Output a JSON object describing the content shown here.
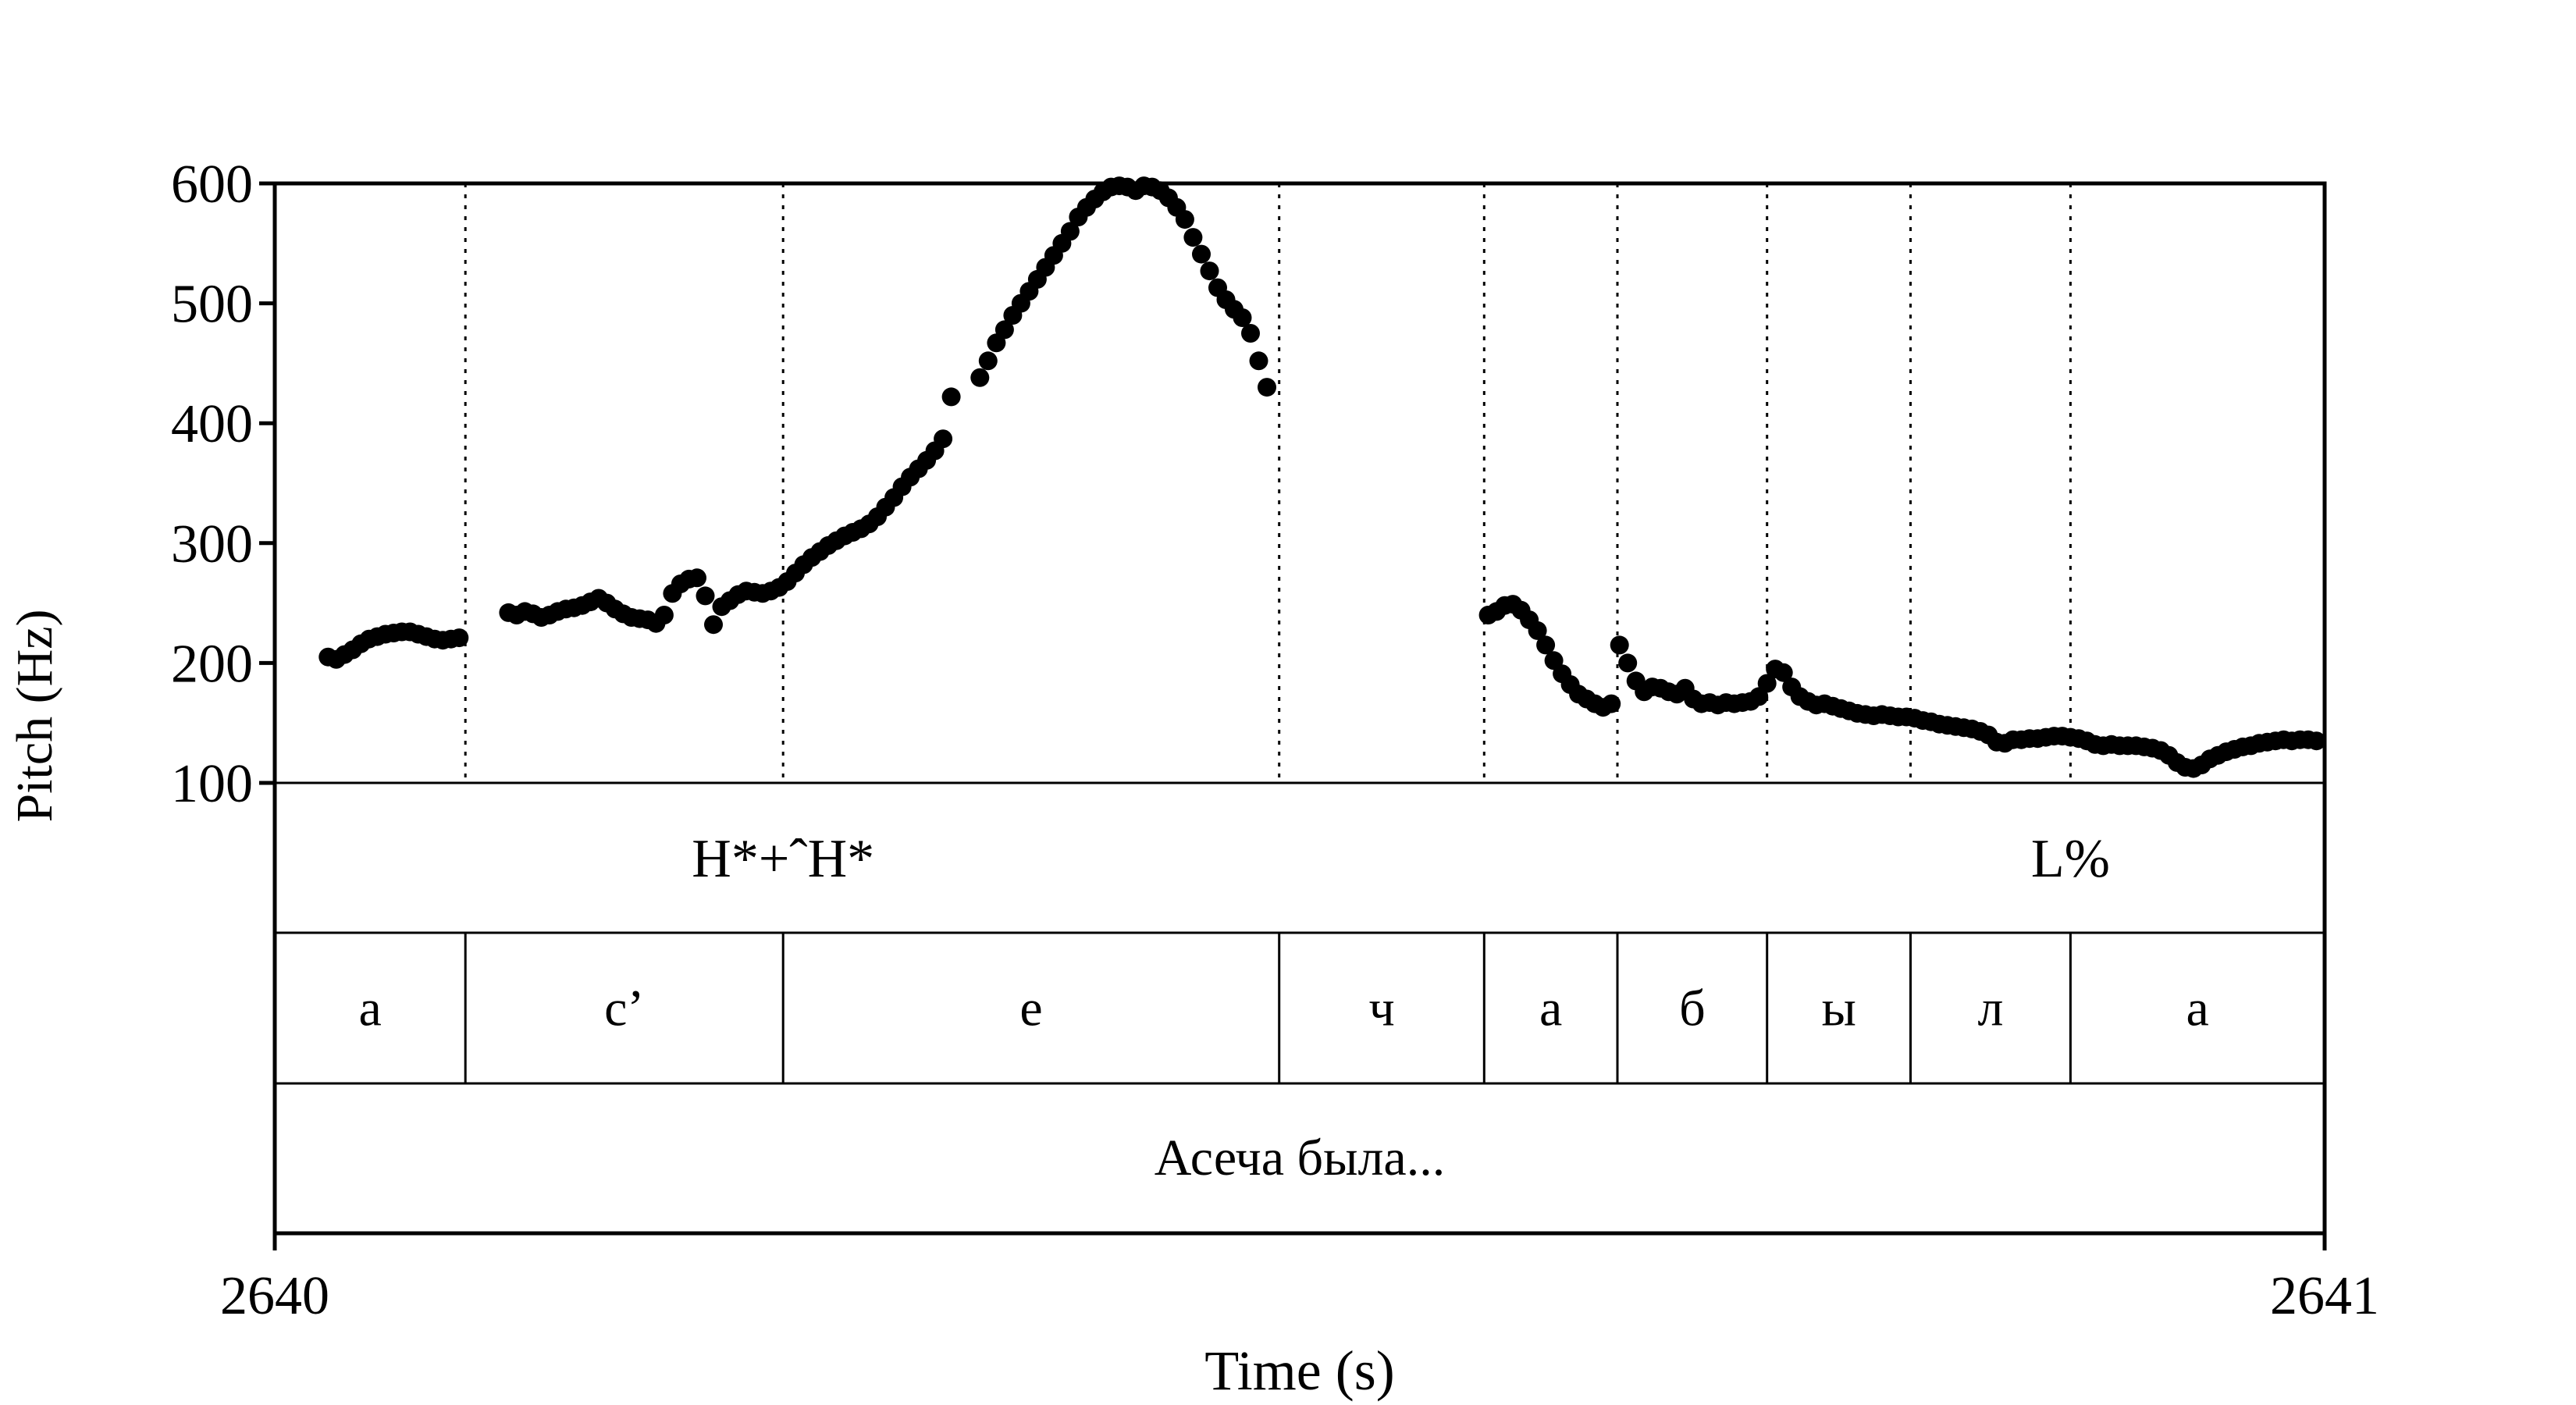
{
  "chart_data": {
    "type": "scatter",
    "title": "",
    "ylabel": "Pitch (Hz)",
    "xlabel": "Time (s)",
    "ylim": [
      100,
      600
    ],
    "xlim": [
      2640,
      2641
    ],
    "y_ticks": [
      "600",
      "500",
      "400",
      "300",
      "200",
      "100"
    ],
    "y_tick_values": [
      600,
      500,
      400,
      300,
      200,
      100
    ],
    "x_tick_labels": [
      "2640",
      "2641"
    ],
    "grid": false,
    "marker_color": "#000000",
    "boundaries": [
      2640.093,
      2640.248,
      2640.49,
      2640.59,
      2640.655,
      2640.728,
      2640.798,
      2640.876
    ],
    "tones": [
      {
        "label": "H*+ˆH*",
        "t": 2640.248
      },
      {
        "label": "L%",
        "t": 2640.876
      }
    ],
    "segments": [
      {
        "label": "а",
        "start": 2640.0,
        "end": 2640.093
      },
      {
        "label": "с’",
        "start": 2640.093,
        "end": 2640.248
      },
      {
        "label": "е",
        "start": 2640.248,
        "end": 2640.49
      },
      {
        "label": "ч",
        "start": 2640.49,
        "end": 2640.59
      },
      {
        "label": "а",
        "start": 2640.59,
        "end": 2640.655
      },
      {
        "label": "б",
        "start": 2640.655,
        "end": 2640.728
      },
      {
        "label": "ы",
        "start": 2640.728,
        "end": 2640.798
      },
      {
        "label": "л",
        "start": 2640.798,
        "end": 2640.876
      },
      {
        "label": "а",
        "start": 2640.876,
        "end": 2641.0
      }
    ],
    "words_tier_label": "Асеча была...",
    "pitch_segments": [
      [
        [
          2640.026,
          205
        ],
        [
          2640.03,
          203
        ],
        [
          2640.034,
          207
        ],
        [
          2640.038,
          211
        ],
        [
          2640.042,
          216
        ],
        [
          2640.046,
          220
        ],
        [
          2640.05,
          222
        ],
        [
          2640.054,
          224
        ],
        [
          2640.058,
          225
        ],
        [
          2640.062,
          226
        ],
        [
          2640.066,
          226
        ],
        [
          2640.07,
          224
        ],
        [
          2640.074,
          222
        ],
        [
          2640.078,
          220
        ],
        [
          2640.082,
          219
        ],
        [
          2640.086,
          220
        ],
        [
          2640.09,
          221
        ]
      ],
      [
        [
          2640.114,
          242
        ],
        [
          2640.118,
          240
        ],
        [
          2640.122,
          243
        ],
        [
          2640.126,
          241
        ],
        [
          2640.13,
          238
        ],
        [
          2640.134,
          240
        ],
        [
          2640.138,
          243
        ],
        [
          2640.142,
          245
        ],
        [
          2640.146,
          246
        ],
        [
          2640.15,
          248
        ],
        [
          2640.154,
          251
        ],
        [
          2640.158,
          254
        ],
        [
          2640.162,
          250
        ],
        [
          2640.166,
          245
        ],
        [
          2640.17,
          241
        ],
        [
          2640.174,
          238
        ],
        [
          2640.178,
          237
        ],
        [
          2640.182,
          236
        ],
        [
          2640.186,
          233
        ],
        [
          2640.19,
          240
        ],
        [
          2640.194,
          258
        ],
        [
          2640.198,
          266
        ],
        [
          2640.202,
          270
        ],
        [
          2640.206,
          271
        ],
        [
          2640.21,
          256
        ],
        [
          2640.214,
          232
        ],
        [
          2640.218,
          247
        ],
        [
          2640.222,
          252
        ],
        [
          2640.226,
          257
        ],
        [
          2640.23,
          260
        ],
        [
          2640.234,
          259
        ],
        [
          2640.238,
          258
        ],
        [
          2640.242,
          260
        ],
        [
          2640.246,
          263
        ],
        [
          2640.25,
          268
        ],
        [
          2640.254,
          275
        ],
        [
          2640.258,
          282
        ],
        [
          2640.262,
          288
        ],
        [
          2640.266,
          293
        ],
        [
          2640.27,
          298
        ],
        [
          2640.274,
          302
        ],
        [
          2640.278,
          306
        ],
        [
          2640.282,
          309
        ],
        [
          2640.286,
          312
        ],
        [
          2640.29,
          316
        ],
        [
          2640.294,
          322
        ],
        [
          2640.298,
          330
        ],
        [
          2640.302,
          338
        ],
        [
          2640.306,
          347
        ],
        [
          2640.31,
          355
        ],
        [
          2640.314,
          362
        ],
        [
          2640.318,
          369
        ],
        [
          2640.322,
          377
        ],
        [
          2640.326,
          387
        ],
        [
          2640.33,
          422
        ]
      ],
      [
        [
          2640.344,
          438
        ],
        [
          2640.348,
          452
        ],
        [
          2640.352,
          467
        ],
        [
          2640.356,
          478
        ],
        [
          2640.36,
          490
        ],
        [
          2640.364,
          500
        ],
        [
          2640.368,
          510
        ],
        [
          2640.372,
          520
        ],
        [
          2640.376,
          530
        ],
        [
          2640.38,
          540
        ],
        [
          2640.384,
          550
        ],
        [
          2640.388,
          560
        ],
        [
          2640.392,
          572
        ],
        [
          2640.396,
          580
        ],
        [
          2640.4,
          587
        ],
        [
          2640.404,
          593
        ],
        [
          2640.408,
          597
        ],
        [
          2640.412,
          598
        ],
        [
          2640.416,
          597
        ],
        [
          2640.42,
          594
        ],
        [
          2640.424,
          598
        ],
        [
          2640.428,
          597
        ],
        [
          2640.432,
          594
        ],
        [
          2640.436,
          588
        ],
        [
          2640.44,
          580
        ],
        [
          2640.444,
          570
        ],
        [
          2640.448,
          555
        ],
        [
          2640.452,
          541
        ],
        [
          2640.456,
          527
        ],
        [
          2640.46,
          513
        ],
        [
          2640.464,
          503
        ],
        [
          2640.468,
          495
        ],
        [
          2640.472,
          488
        ],
        [
          2640.476,
          475
        ],
        [
          2640.48,
          452
        ],
        [
          2640.484,
          430
        ]
      ],
      [
        [
          2640.592,
          240
        ],
        [
          2640.596,
          243
        ],
        [
          2640.6,
          248
        ],
        [
          2640.604,
          249
        ],
        [
          2640.608,
          244
        ],
        [
          2640.612,
          236
        ],
        [
          2640.616,
          227
        ],
        [
          2640.62,
          215
        ],
        [
          2640.624,
          202
        ],
        [
          2640.628,
          191
        ],
        [
          2640.632,
          182
        ],
        [
          2640.636,
          174
        ],
        [
          2640.64,
          170
        ],
        [
          2640.644,
          166
        ],
        [
          2640.648,
          163
        ],
        [
          2640.652,
          166
        ]
      ],
      [
        [
          2640.656,
          215
        ],
        [
          2640.66,
          200
        ],
        [
          2640.664,
          185
        ],
        [
          2640.668,
          176
        ],
        [
          2640.672,
          180
        ],
        [
          2640.676,
          179
        ],
        [
          2640.68,
          176
        ],
        [
          2640.684,
          174
        ],
        [
          2640.688,
          179
        ],
        [
          2640.692,
          170
        ],
        [
          2640.696,
          166
        ],
        [
          2640.7,
          167
        ],
        [
          2640.704,
          165
        ],
        [
          2640.708,
          167
        ],
        [
          2640.712,
          166
        ],
        [
          2640.716,
          167
        ],
        [
          2640.72,
          168
        ],
        [
          2640.724,
          172
        ],
        [
          2640.728,
          183
        ],
        [
          2640.732,
          195
        ],
        [
          2640.736,
          192
        ],
        [
          2640.74,
          180
        ],
        [
          2640.744,
          172
        ],
        [
          2640.748,
          168
        ],
        [
          2640.752,
          165
        ],
        [
          2640.756,
          166
        ],
        [
          2640.76,
          164
        ],
        [
          2640.764,
          162
        ],
        [
          2640.768,
          160
        ],
        [
          2640.772,
          158
        ],
        [
          2640.776,
          157
        ],
        [
          2640.78,
          156
        ],
        [
          2640.784,
          157
        ],
        [
          2640.788,
          156
        ],
        [
          2640.792,
          155
        ],
        [
          2640.796,
          155
        ],
        [
          2640.8,
          154
        ],
        [
          2640.804,
          152
        ],
        [
          2640.808,
          151
        ],
        [
          2640.812,
          149
        ],
        [
          2640.816,
          148
        ],
        [
          2640.82,
          147
        ],
        [
          2640.824,
          146
        ],
        [
          2640.828,
          145
        ],
        [
          2640.832,
          143
        ],
        [
          2640.836,
          140
        ],
        [
          2640.84,
          134
        ],
        [
          2640.844,
          133
        ],
        [
          2640.848,
          136
        ],
        [
          2640.852,
          136
        ],
        [
          2640.856,
          137
        ],
        [
          2640.86,
          137
        ],
        [
          2640.864,
          138
        ],
        [
          2640.868,
          139
        ],
        [
          2640.872,
          139
        ],
        [
          2640.876,
          138
        ],
        [
          2640.88,
          137
        ],
        [
          2640.884,
          135
        ],
        [
          2640.888,
          132
        ],
        [
          2640.892,
          131
        ],
        [
          2640.896,
          132
        ],
        [
          2640.9,
          131
        ],
        [
          2640.904,
          131
        ],
        [
          2640.908,
          131
        ],
        [
          2640.912,
          130
        ],
        [
          2640.916,
          129
        ],
        [
          2640.92,
          127
        ],
        [
          2640.924,
          123
        ],
        [
          2640.928,
          117
        ],
        [
          2640.932,
          113
        ],
        [
          2640.936,
          112
        ],
        [
          2640.94,
          115
        ],
        [
          2640.944,
          120
        ],
        [
          2640.948,
          123
        ],
        [
          2640.952,
          126
        ],
        [
          2640.956,
          128
        ],
        [
          2640.96,
          130
        ],
        [
          2640.964,
          131
        ],
        [
          2640.968,
          133
        ],
        [
          2640.972,
          134
        ],
        [
          2640.976,
          135
        ],
        [
          2640.98,
          136
        ],
        [
          2640.984,
          135
        ],
        [
          2640.988,
          136
        ],
        [
          2640.992,
          136
        ],
        [
          2640.996,
          135
        ]
      ]
    ]
  }
}
